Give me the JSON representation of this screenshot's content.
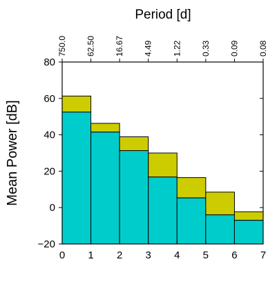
{
  "chart_data": {
    "type": "bar",
    "title": "",
    "xlabel": "",
    "ylabel": "Mean Power [dB]",
    "x2label": "Period [d]",
    "xlim": [
      0,
      7
    ],
    "ylim": [
      -20,
      80
    ],
    "x_ticks": [
      "0",
      "1",
      "2",
      "3",
      "4",
      "5",
      "6",
      "7"
    ],
    "y_ticks": [
      "−20",
      "0",
      "20",
      "40",
      "60",
      "80"
    ],
    "y_tick_values": [
      -20,
      0,
      20,
      40,
      60,
      80
    ],
    "top_ticks": [
      "750.0",
      "62.50",
      "16.67",
      "4.49",
      "1.22",
      "0.33",
      "0.09",
      "0.08"
    ],
    "grid": false,
    "bins": [
      {
        "x0": 0,
        "x1": 1,
        "lower": 52.5,
        "upper": 61.3
      },
      {
        "x0": 1,
        "x1": 2,
        "lower": 41.5,
        "upper": 46.3
      },
      {
        "x0": 2,
        "x1": 3,
        "lower": 31.3,
        "upper": 38.9
      },
      {
        "x0": 3,
        "x1": 4,
        "lower": 16.8,
        "upper": 30.0
      },
      {
        "x0": 4,
        "x1": 5,
        "lower": 5.3,
        "upper": 16.5
      },
      {
        "x0": 5,
        "x1": 6,
        "lower": -4.0,
        "upper": 8.5
      },
      {
        "x0": 6,
        "x1": 7,
        "lower": -7.0,
        "upper": -2.3
      }
    ],
    "colors": {
      "lower": "#00cccc",
      "upper": "#cccc00",
      "edge": "#000000"
    }
  }
}
